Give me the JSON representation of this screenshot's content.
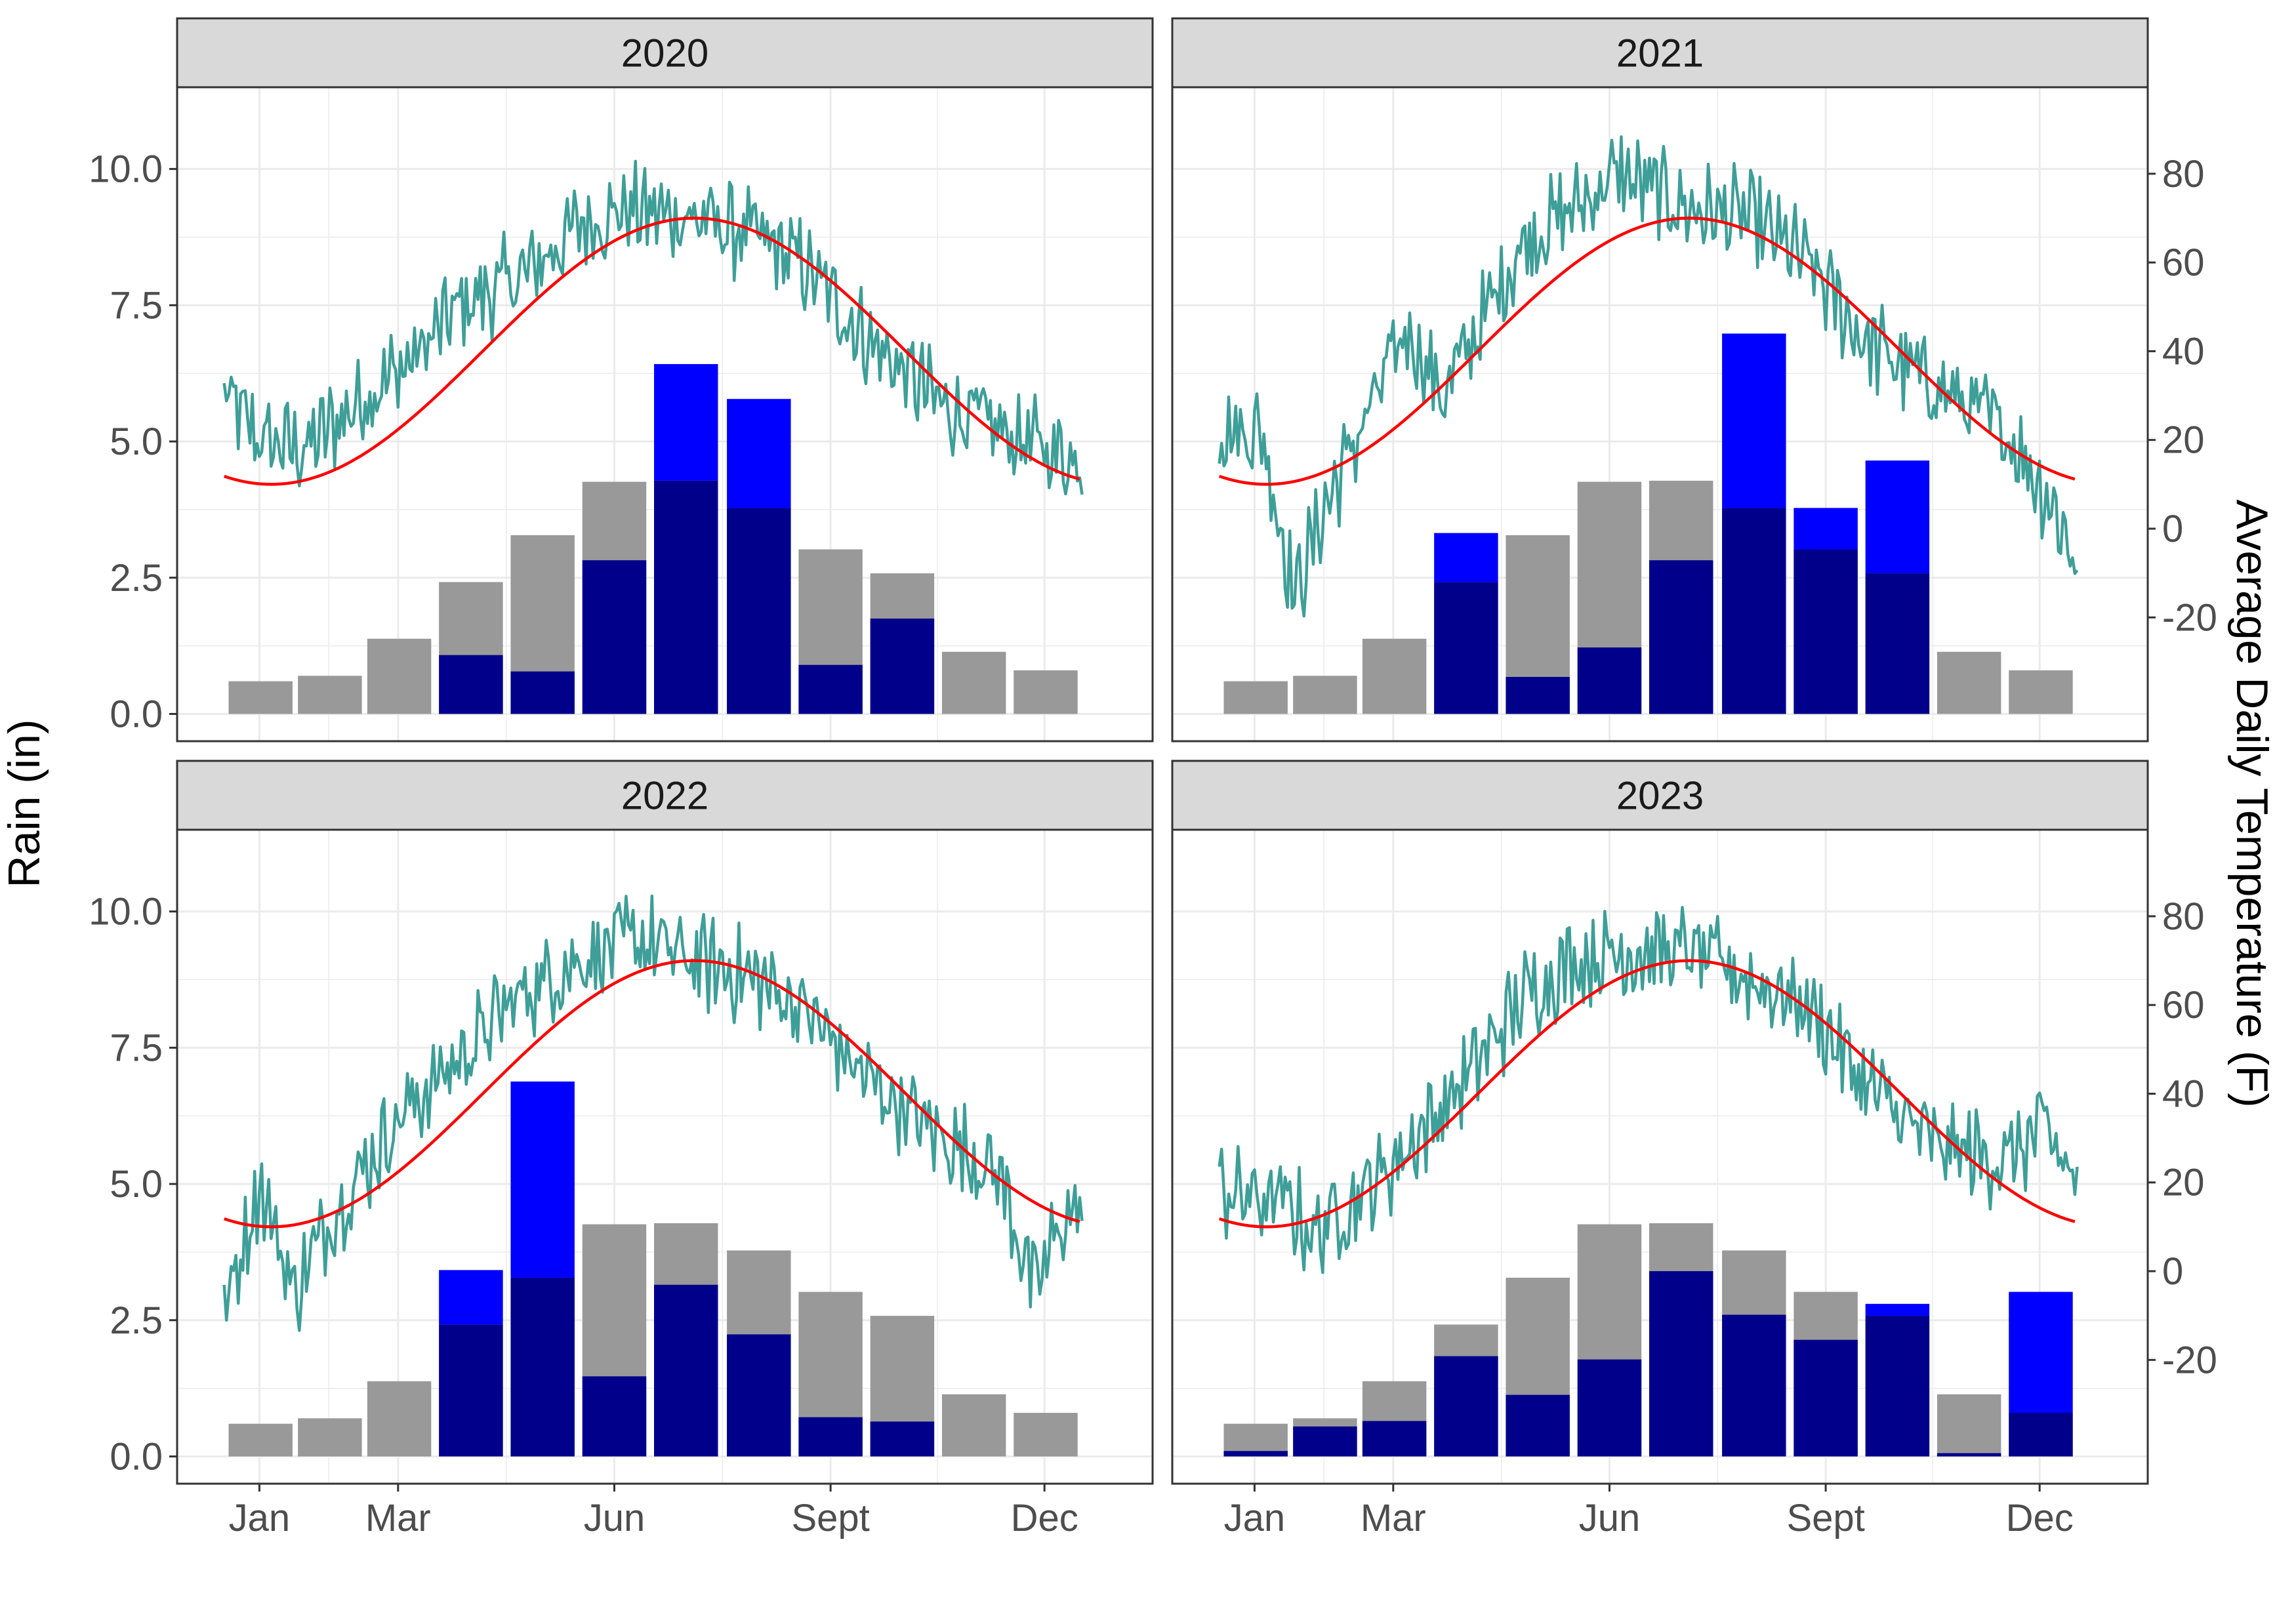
{
  "chart_data": {
    "type": "bar+line",
    "facet_titles": [
      "2020",
      "2021",
      "2022",
      "2023"
    ],
    "ylabel": "Rain (in)",
    "ylabel_right": "Average Daily Temperature (F)",
    "ylim": [
      -0.5,
      11.5
    ],
    "yticks": [
      "0.0",
      "2.5",
      "5.0",
      "7.5",
      "10.0"
    ],
    "yticks_right": [
      "-20",
      "0",
      "20",
      "40",
      "60",
      "80"
    ],
    "x_month_ticks": [
      "Jan",
      "Mar",
      "Jun",
      "Sept",
      "Dec"
    ],
    "month_centers": [
      "Jan",
      "Feb",
      "Mar",
      "Apr",
      "May",
      "Jun",
      "Jul",
      "Aug",
      "Sep",
      "Oct",
      "Nov",
      "Dec"
    ],
    "normal_rain": [
      0.6,
      0.7,
      1.38,
      2.42,
      3.28,
      4.26,
      4.28,
      3.78,
      3.02,
      2.58,
      1.14,
      0.8
    ],
    "observed_rain": {
      "2020": [
        null,
        null,
        null,
        1.08,
        0.78,
        2.82,
        6.42,
        5.78,
        0.9,
        1.75,
        null,
        null
      ],
      "2021": [
        null,
        null,
        null,
        3.32,
        0.68,
        1.22,
        2.82,
        6.98,
        3.78,
        4.65,
        null,
        null
      ],
      "2022": [
        null,
        null,
        null,
        3.42,
        6.88,
        1.47,
        3.15,
        2.24,
        0.72,
        0.64,
        null,
        null
      ],
      "2023": [
        0.1,
        0.55,
        0.65,
        1.84,
        1.13,
        1.78,
        3.4,
        2.6,
        2.14,
        2.8,
        0.06,
        3.02
      ]
    },
    "normal_temperature_curve": {
      "min": 10,
      "max": 70,
      "min_day": 20,
      "max_day": 200
    },
    "daily_temperature_anchors": {
      "2020": [
        [
          0,
          30
        ],
        [
          15,
          20
        ],
        [
          35,
          18
        ],
        [
          60,
          30
        ],
        [
          80,
          38
        ],
        [
          100,
          50
        ],
        [
          130,
          58
        ],
        [
          150,
          68
        ],
        [
          170,
          72
        ],
        [
          200,
          70
        ],
        [
          225,
          66
        ],
        [
          245,
          60
        ],
        [
          275,
          42
        ],
        [
          305,
          28
        ],
        [
          330,
          22
        ],
        [
          365,
          15
        ]
      ],
      "2021": [
        [
          0,
          22
        ],
        [
          18,
          22
        ],
        [
          32,
          -15
        ],
        [
          45,
          5
        ],
        [
          80,
          45
        ],
        [
          95,
          30
        ],
        [
          130,
          65
        ],
        [
          150,
          72
        ],
        [
          170,
          80
        ],
        [
          200,
          72
        ],
        [
          225,
          70
        ],
        [
          250,
          60
        ],
        [
          275,
          42
        ],
        [
          305,
          32
        ],
        [
          335,
          22
        ],
        [
          355,
          5
        ],
        [
          365,
          -8
        ]
      ],
      "2022": [
        [
          0,
          -10
        ],
        [
          15,
          20
        ],
        [
          30,
          -5
        ],
        [
          45,
          12
        ],
        [
          75,
          35
        ],
        [
          100,
          48
        ],
        [
          125,
          62
        ],
        [
          150,
          70
        ],
        [
          175,
          75
        ],
        [
          200,
          70
        ],
        [
          225,
          66
        ],
        [
          245,
          60
        ],
        [
          270,
          45
        ],
        [
          300,
          32
        ],
        [
          330,
          22
        ],
        [
          345,
          -5
        ],
        [
          355,
          10
        ],
        [
          365,
          15
        ]
      ],
      "2023": [
        [
          0,
          18
        ],
        [
          30,
          15
        ],
        [
          40,
          8
        ],
        [
          70,
          22
        ],
        [
          100,
          40
        ],
        [
          130,
          62
        ],
        [
          150,
          70
        ],
        [
          175,
          72
        ],
        [
          200,
          72
        ],
        [
          225,
          66
        ],
        [
          250,
          60
        ],
        [
          275,
          42
        ],
        [
          305,
          28
        ],
        [
          335,
          25
        ],
        [
          350,
          32
        ],
        [
          365,
          20
        ]
      ]
    },
    "colors": {
      "normal_bar": "#999999",
      "observed_above_normal": "#0000ff",
      "observed_below_normal": "#00008b",
      "daily_temperature": "#3e9e98",
      "normal_temperature": "#ff0000",
      "strip_background": "#d9d9d9",
      "grid_major": "#ebebeb",
      "grid_minor": "#f5f5f5"
    },
    "grid": true,
    "legend": "none"
  }
}
